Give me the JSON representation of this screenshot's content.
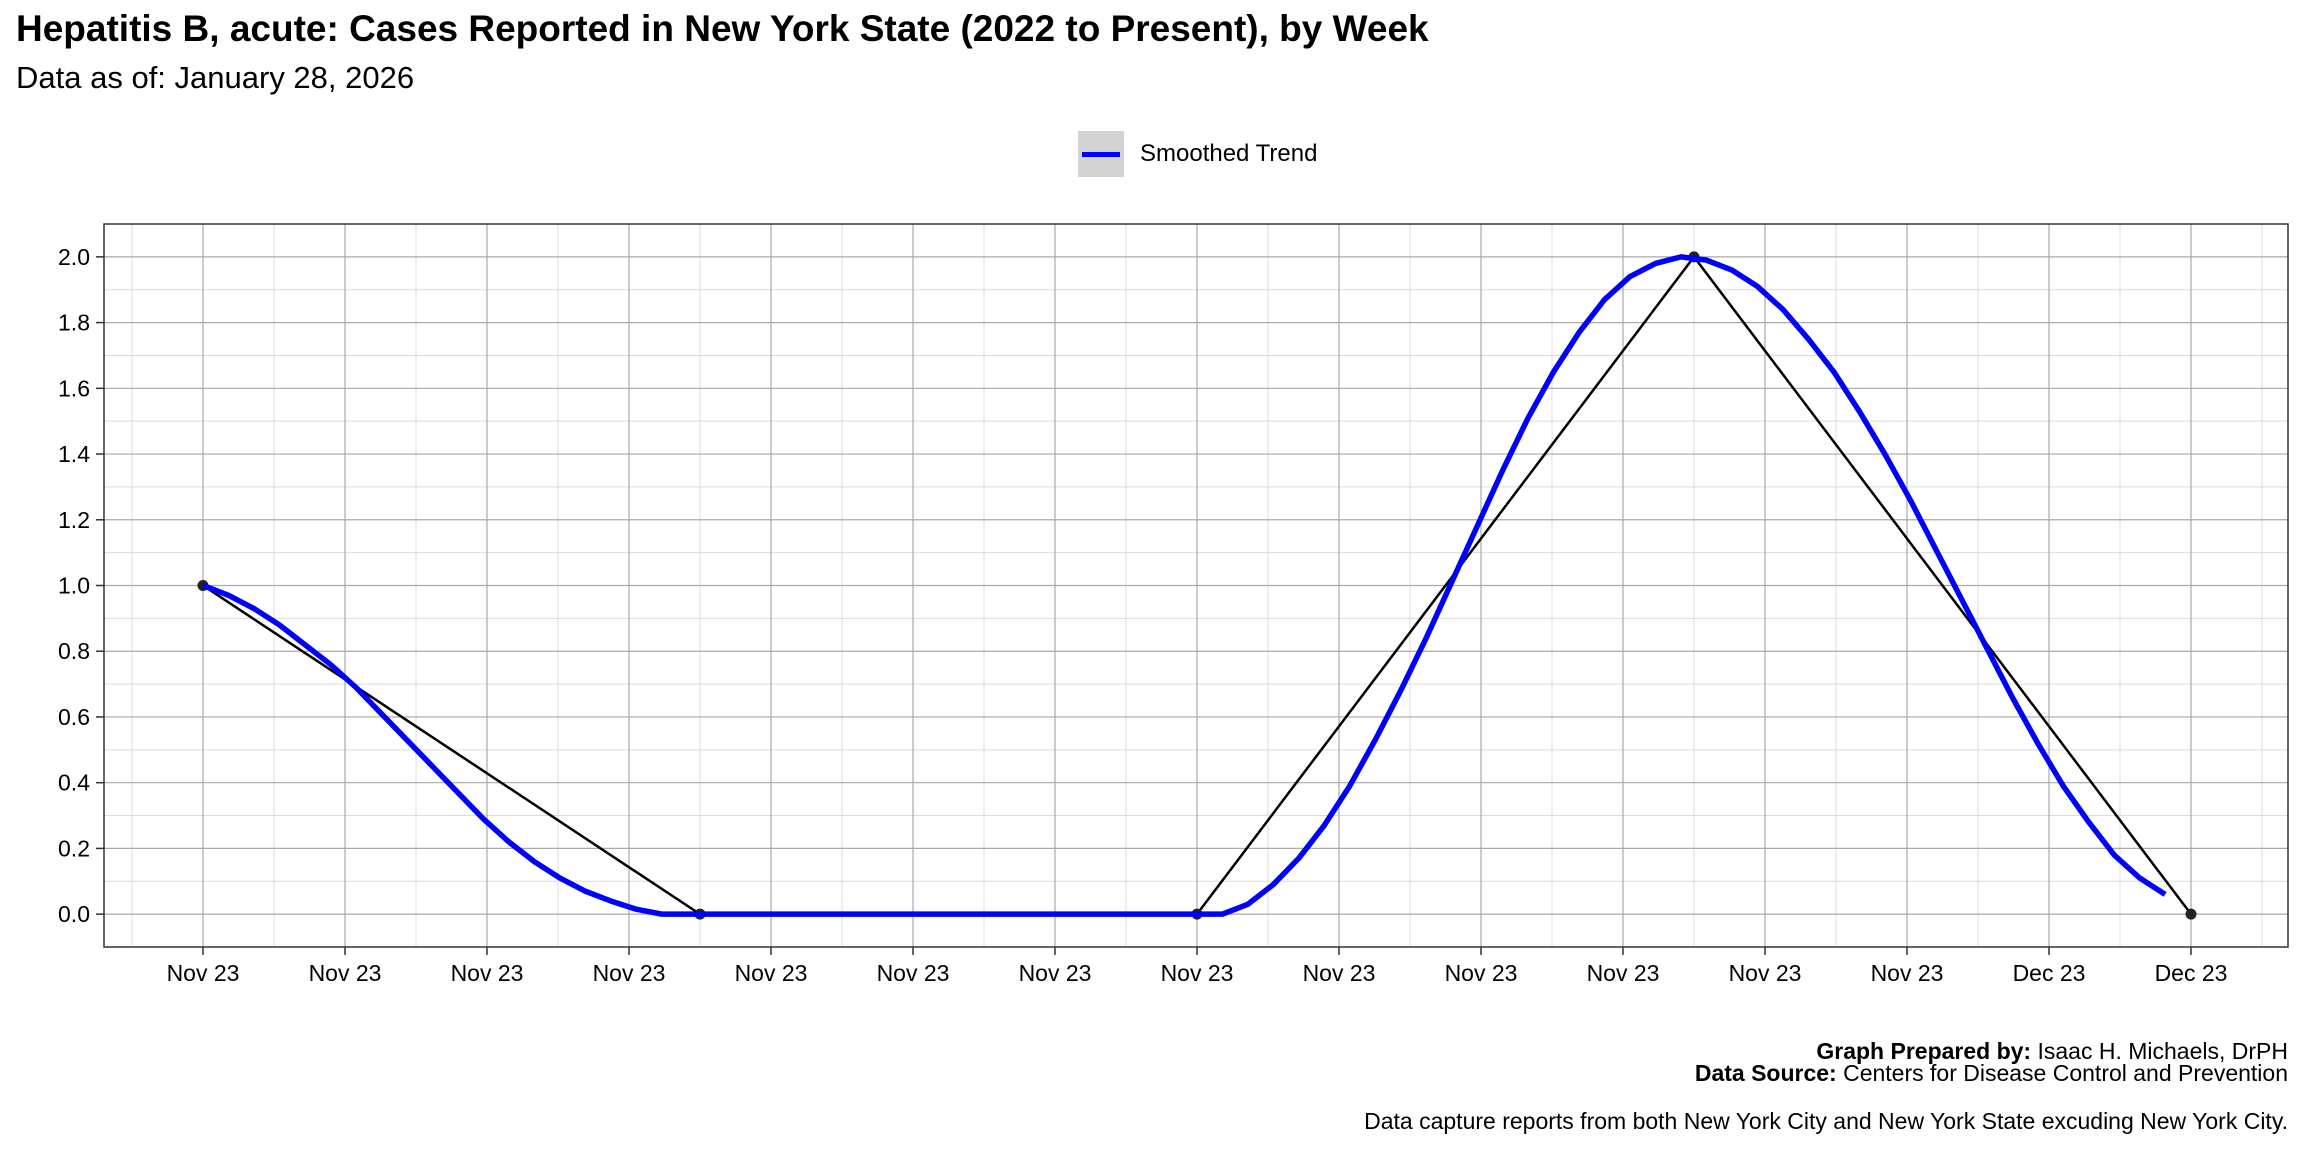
{
  "header": {
    "title": "Hepatitis B, acute: Cases Reported in New York State (2022 to Present), by Week",
    "subtitle": "Data as of: January 28, 2026"
  },
  "legend": {
    "label": "Smoothed Trend",
    "color": "#0000ff",
    "key_background": "#d3d3d3"
  },
  "captions": {
    "prepared_by_label": "Graph Prepared by:",
    "prepared_by_value": " Isaac H. Michaels, DrPH",
    "source_label": "Data Source:",
    "source_value": " Centers for Disease Control and Prevention",
    "note": "Data capture reports from both New York City and New York State excuding New York City."
  },
  "chart_data": {
    "type": "line",
    "title": "Hepatitis B, acute: Cases Reported in New York State (2022 to Present), by Week",
    "subtitle": "Data as of: January 28, 2026",
    "xlabel": "",
    "ylabel": "",
    "x_tick_labels": [
      "Nov 23",
      "Nov 23",
      "Nov 23",
      "Nov 23",
      "Nov 23",
      "Nov 23",
      "Nov 23",
      "Nov 23",
      "Nov 23",
      "Nov 23",
      "Nov 23",
      "Nov 23",
      "Nov 23",
      "Dec 23",
      "Dec 23"
    ],
    "y_ticks": [
      0.0,
      0.2,
      0.4,
      0.6,
      0.8,
      1.0,
      1.2,
      1.4,
      1.6,
      1.8,
      2.0
    ],
    "y_tick_labels": [
      "0.0",
      "0.2",
      "0.4",
      "0.6",
      "0.8",
      "1.0",
      "1.2",
      "1.4",
      "1.6",
      "1.8",
      "2.0"
    ],
    "ylim": [
      -0.1,
      2.1
    ],
    "grid": true,
    "legend_position": "top",
    "series": [
      {
        "kind": "observed",
        "color": "#000000",
        "values": [
          1,
          0,
          0,
          2,
          0
        ]
      },
      {
        "name": "Smoothed Trend",
        "kind": "smoothed",
        "color": "#0000ff",
        "values": [
          1.0,
          0.97,
          0.93,
          0.88,
          0.82,
          0.76,
          0.69,
          0.61,
          0.53,
          0.45,
          0.37,
          0.29,
          0.22,
          0.16,
          0.11,
          0.07,
          0.04,
          0.015,
          0.0,
          0.0,
          0.0,
          0.0,
          0.0,
          0.0,
          0.0,
          0.0,
          0.0,
          0.0,
          0.0,
          0.0,
          0.0,
          0.0,
          0.0,
          0.0,
          0.0,
          0.0,
          0.0,
          0.0,
          0.0,
          0.0,
          0.0,
          0.03,
          0.09,
          0.17,
          0.27,
          0.39,
          0.53,
          0.68,
          0.84,
          1.01,
          1.18,
          1.35,
          1.51,
          1.65,
          1.77,
          1.87,
          1.94,
          1.98,
          2.0,
          1.99,
          1.96,
          1.91,
          1.84,
          1.75,
          1.65,
          1.53,
          1.4,
          1.26,
          1.11,
          0.96,
          0.81,
          0.66,
          0.52,
          0.39,
          0.28,
          0.18,
          0.11,
          0.06
        ]
      }
    ]
  }
}
